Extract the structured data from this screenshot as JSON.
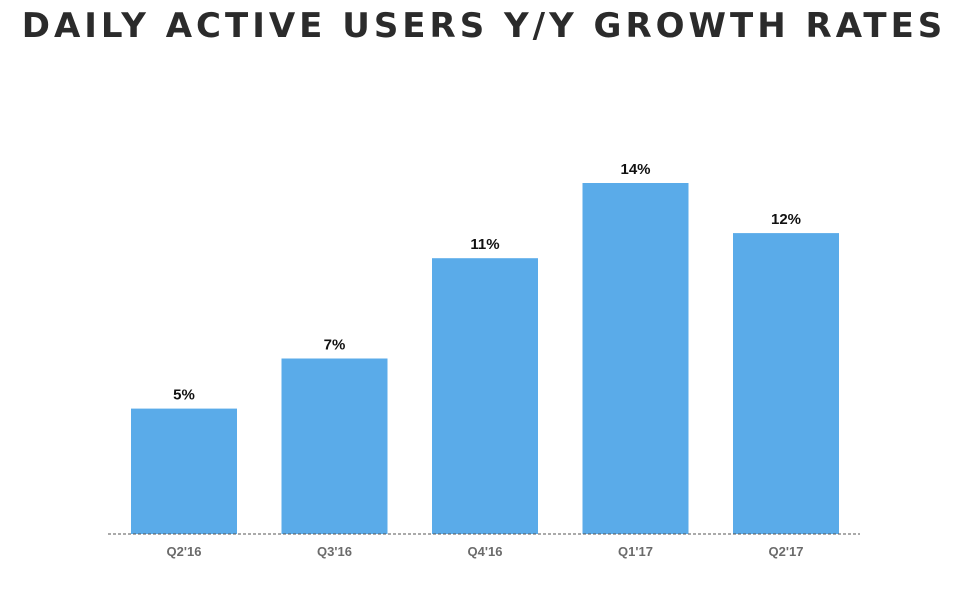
{
  "chart_data": {
    "type": "bar",
    "title": "DAILY ACTIVE USERS Y/Y GROWTH RATES",
    "categories": [
      "Q2'16",
      "Q3'16",
      "Q4'16",
      "Q1'17",
      "Q2'17"
    ],
    "values": [
      5,
      7,
      11,
      14,
      12
    ],
    "value_labels": [
      "5%",
      "7%",
      "11%",
      "14%",
      "12%"
    ],
    "ylim": [
      0,
      14
    ],
    "bar_color": "#5aabe9",
    "baseline_style": "dashed",
    "grid": false,
    "legend": "none"
  }
}
